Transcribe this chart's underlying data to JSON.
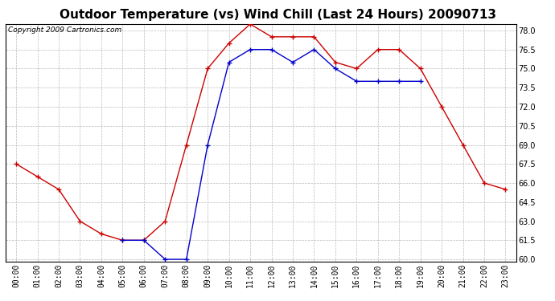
{
  "title": "Outdoor Temperature (vs) Wind Chill (Last 24 Hours) 20090713",
  "copyright_text": "Copyright 2009 Cartronics.com",
  "hours": [
    "00:00",
    "01:00",
    "02:00",
    "03:00",
    "04:00",
    "05:00",
    "06:00",
    "07:00",
    "08:00",
    "09:00",
    "10:00",
    "11:00",
    "12:00",
    "13:00",
    "14:00",
    "15:00",
    "16:00",
    "17:00",
    "18:00",
    "19:00",
    "20:00",
    "21:00",
    "22:00",
    "23:00"
  ],
  "temp": [
    67.5,
    66.5,
    65.5,
    63.0,
    62.0,
    61.5,
    61.5,
    63.0,
    69.0,
    75.0,
    77.0,
    78.5,
    77.5,
    77.5,
    77.5,
    75.5,
    75.0,
    76.5,
    76.5,
    75.0,
    72.0,
    69.0,
    66.0,
    65.5
  ],
  "wind_chill": [
    null,
    null,
    null,
    null,
    null,
    61.5,
    61.5,
    60.0,
    60.0,
    69.0,
    75.5,
    76.5,
    76.5,
    75.5,
    76.5,
    75.0,
    74.0,
    74.0,
    74.0,
    74.0,
    null,
    null,
    null,
    null
  ],
  "temp_color": "#cc0000",
  "wind_chill_color": "#0000cc",
  "bg_color": "#ffffff",
  "plot_bg_color": "#ffffff",
  "grid_color": "#bbbbbb",
  "ytick_min": 60.0,
  "ytick_max": 78.0,
  "ytick_step": 1.5,
  "title_fontsize": 11,
  "copyright_fontsize": 6.5,
  "tick_fontsize": 7,
  "line_width": 1.0,
  "marker_size": 4
}
